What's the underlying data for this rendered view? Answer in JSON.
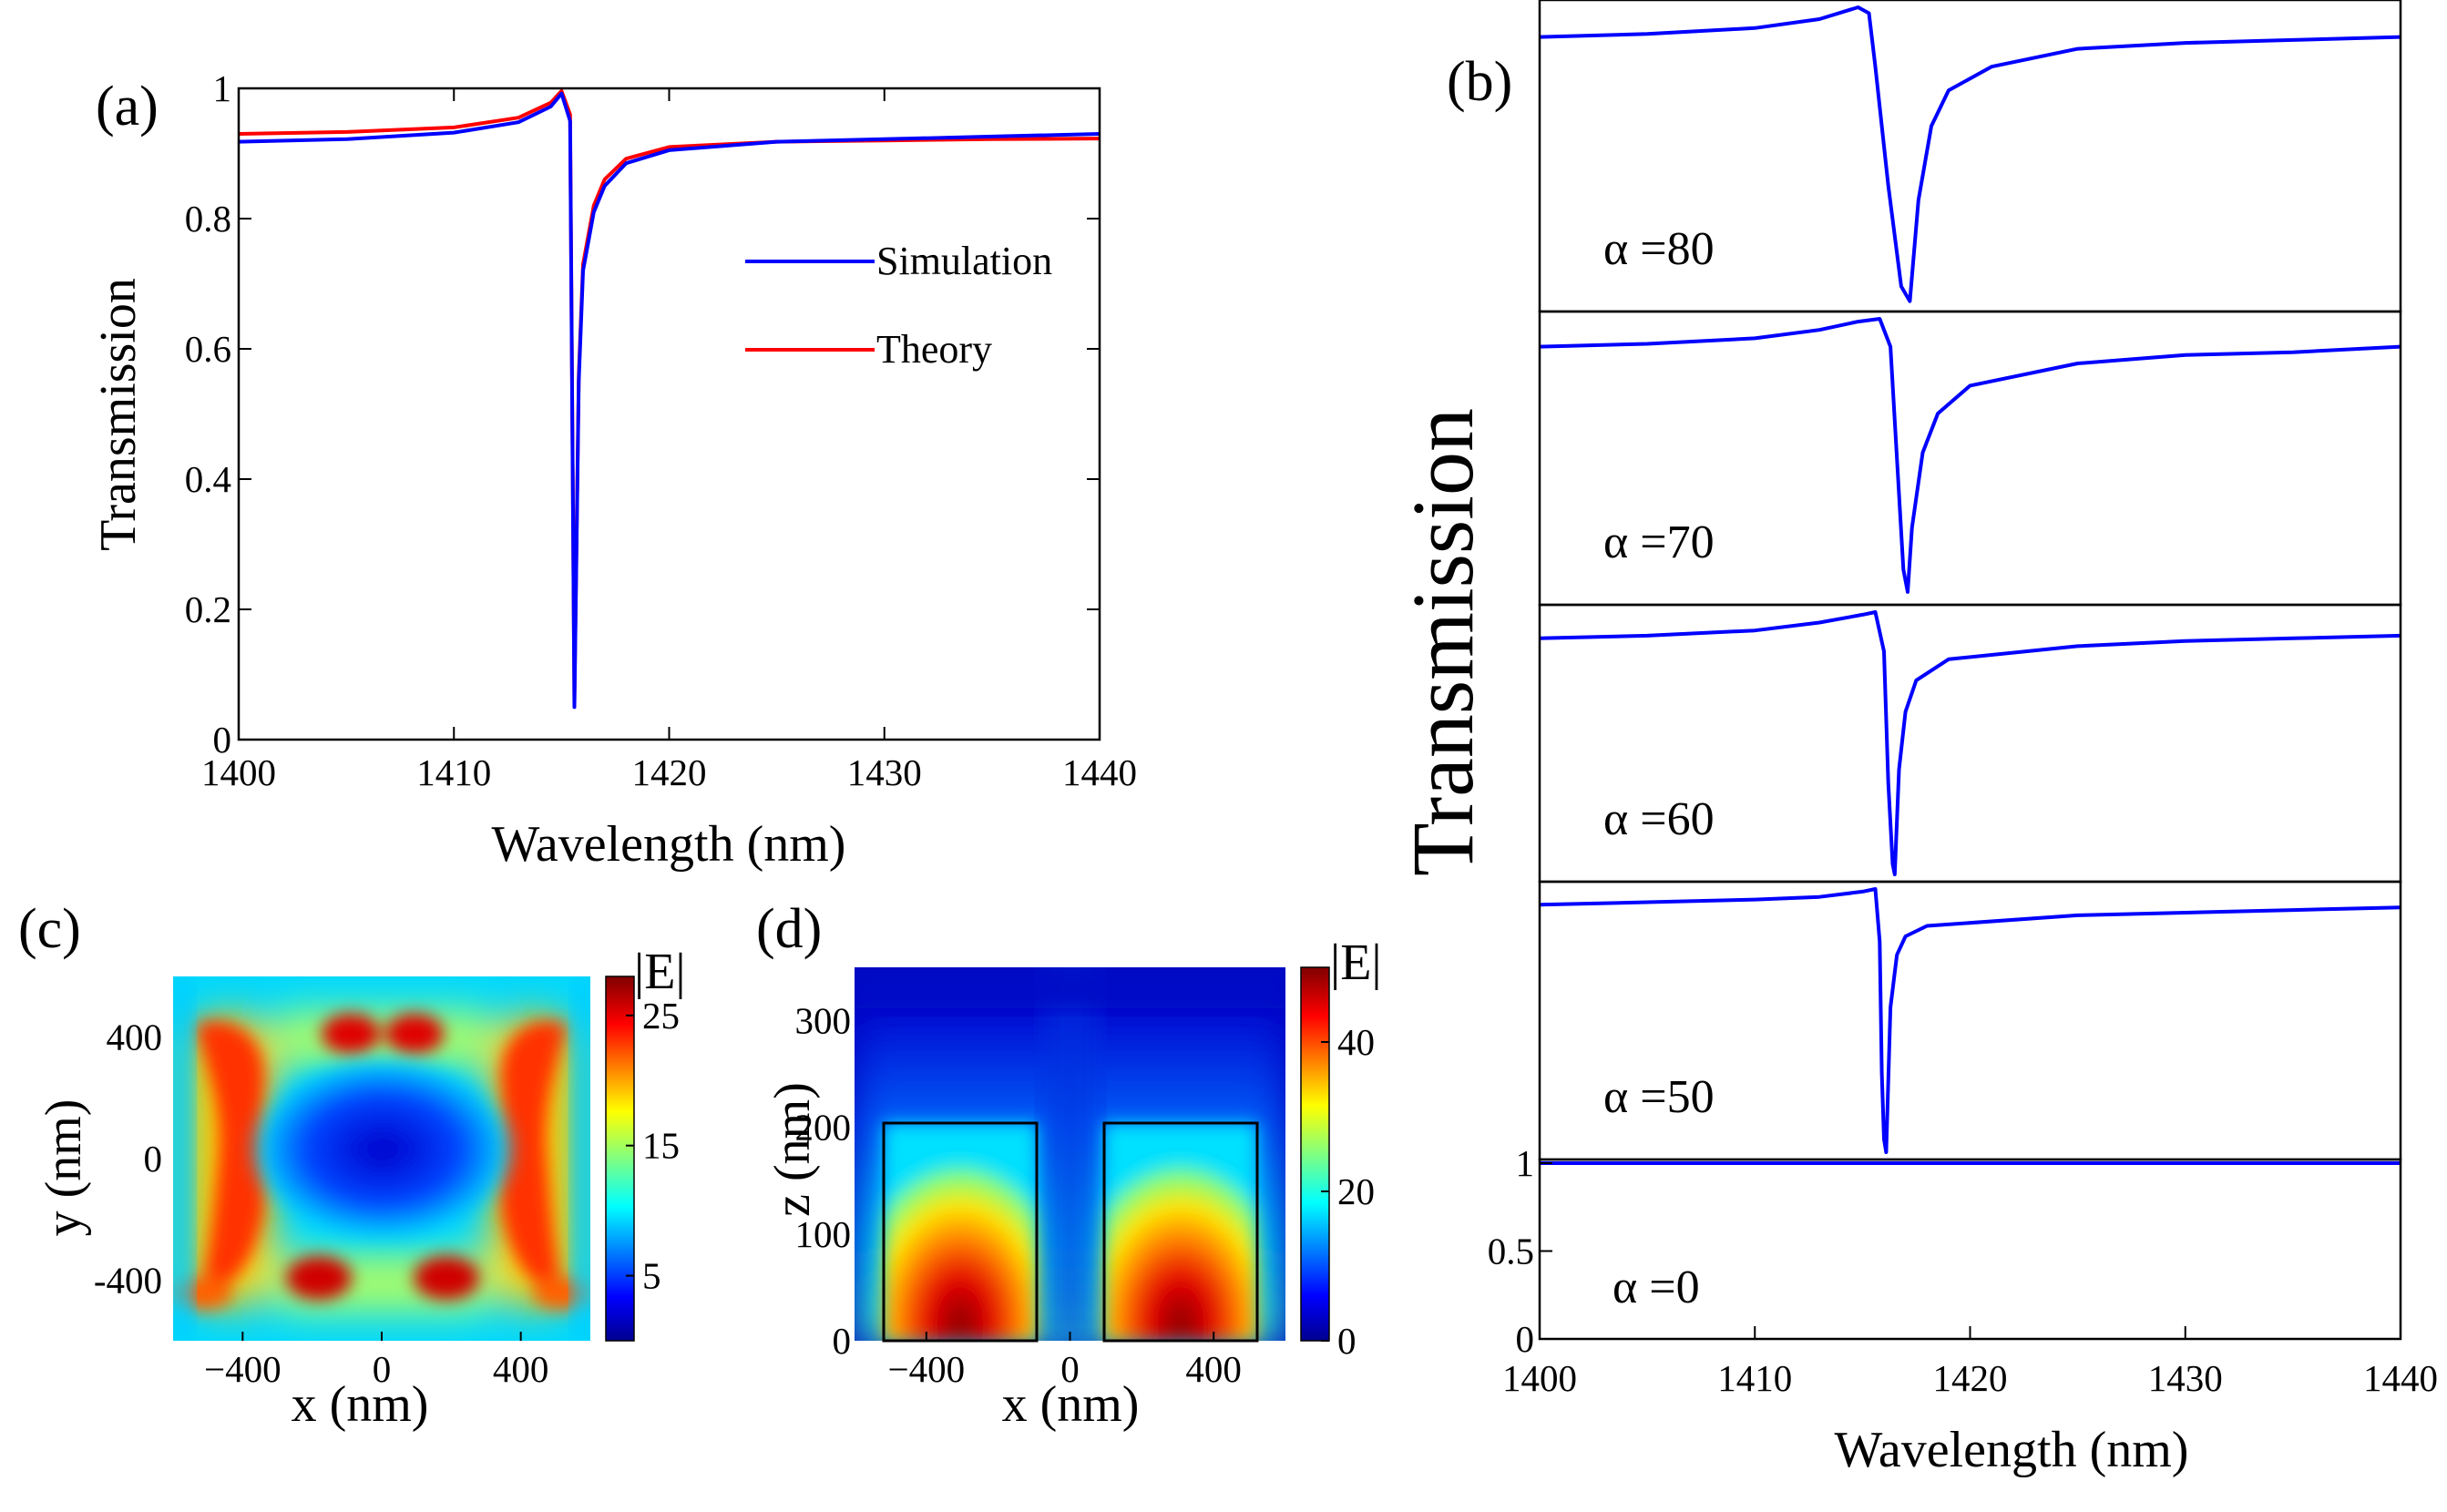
{
  "colors": {
    "simulation": "#0000ff",
    "theory": "#ff0000",
    "frame": "#000000"
  },
  "chart_data": [
    {
      "panel": "(a)",
      "type": "line",
      "xlabel": "Wavelength (nm)",
      "ylabel": "Transmission",
      "xlim": [
        1400,
        1440
      ],
      "ylim": [
        0,
        1
      ],
      "xticks": [
        "1400",
        "1410",
        "1420",
        "1430",
        "1440"
      ],
      "yticks": [
        "0",
        "0.2",
        "0.4",
        "0.6",
        "0.8",
        "1"
      ],
      "legend": {
        "position": "center-right",
        "entries": [
          "Simulation",
          "Theory"
        ]
      },
      "series": [
        {
          "name": "Simulation",
          "x": [
            1400,
            1405,
            1410,
            1413,
            1414.5,
            1415.0,
            1415.4,
            1415.6,
            1415.8,
            1416.0,
            1416.5,
            1417,
            1418,
            1420,
            1425,
            1430,
            1435,
            1440
          ],
          "y": [
            0.918,
            0.922,
            0.932,
            0.948,
            0.972,
            0.992,
            0.95,
            0.05,
            0.55,
            0.72,
            0.81,
            0.85,
            0.885,
            0.905,
            0.918,
            0.922,
            0.926,
            0.93
          ]
        },
        {
          "name": "Theory",
          "x": [
            1400,
            1405,
            1410,
            1413,
            1414.5,
            1415.0,
            1415.4,
            1415.6,
            1415.8,
            1416.0,
            1416.5,
            1417,
            1418,
            1420,
            1425,
            1430,
            1435,
            1440
          ],
          "y": [
            0.93,
            0.933,
            0.94,
            0.955,
            0.978,
            0.996,
            0.96,
            0.06,
            0.56,
            0.73,
            0.82,
            0.86,
            0.892,
            0.91,
            0.918,
            0.92,
            0.922,
            0.923
          ]
        }
      ]
    },
    {
      "panel": "(b)",
      "type": "line",
      "xlabel": "Wavelength (nm)",
      "ylabel": "Transmission",
      "xlim": [
        1400,
        1440
      ],
      "xticks": [
        "1400",
        "1410",
        "1420",
        "1430",
        "1440"
      ],
      "yticks_bottom": [
        "0",
        "0.5",
        "1"
      ],
      "series": [
        {
          "name": "α =80",
          "x": [
            1400,
            1405,
            1410,
            1413,
            1414.8,
            1415.3,
            1415.6,
            1416.2,
            1416.8,
            1417.2,
            1417.6,
            1418.2,
            1419,
            1421,
            1425,
            1430,
            1435,
            1440
          ],
          "y": [
            0.9,
            0.91,
            0.93,
            0.96,
            1.0,
            0.98,
            0.8,
            0.4,
            0.06,
            0.01,
            0.35,
            0.6,
            0.72,
            0.8,
            0.86,
            0.88,
            0.89,
            0.9
          ]
        },
        {
          "name": "α =70",
          "x": [
            1400,
            1405,
            1410,
            1413,
            1414.8,
            1415.8,
            1416.3,
            1416.6,
            1416.9,
            1417.1,
            1417.3,
            1417.8,
            1418.5,
            1420,
            1425,
            1430,
            1435,
            1440
          ],
          "y": [
            0.9,
            0.91,
            0.93,
            0.96,
            0.99,
            1.0,
            0.9,
            0.5,
            0.1,
            0.02,
            0.25,
            0.52,
            0.66,
            0.76,
            0.84,
            0.87,
            0.88,
            0.9
          ]
        },
        {
          "name": "α =60",
          "x": [
            1400,
            1405,
            1410,
            1413,
            1415,
            1415.6,
            1416.0,
            1416.2,
            1416.4,
            1416.5,
            1416.7,
            1417.0,
            1417.5,
            1419,
            1425,
            1430,
            1435,
            1440
          ],
          "y": [
            0.9,
            0.91,
            0.93,
            0.96,
            0.99,
            1.0,
            0.85,
            0.35,
            0.04,
            0.0,
            0.4,
            0.62,
            0.74,
            0.82,
            0.87,
            0.89,
            0.9,
            0.91
          ]
        },
        {
          "name": "α =50",
          "x": [
            1400,
            1405,
            1410,
            1413,
            1415,
            1415.6,
            1415.8,
            1415.9,
            1416.0,
            1416.1,
            1416.3,
            1416.6,
            1417.0,
            1418,
            1425,
            1430,
            1435,
            1440
          ],
          "y": [
            0.94,
            0.95,
            0.96,
            0.97,
            0.99,
            1.0,
            0.8,
            0.3,
            0.05,
            0.0,
            0.55,
            0.75,
            0.82,
            0.86,
            0.9,
            0.91,
            0.92,
            0.93
          ]
        },
        {
          "name": "α =0",
          "x": [
            1400,
            1440
          ],
          "y": [
            1.0,
            1.0
          ]
        }
      ]
    },
    {
      "panel": "(c)",
      "type": "heatmap",
      "xlabel": "x (nm)",
      "ylabel": "y (nm)",
      "xlim": [
        -600,
        600
      ],
      "ylim": [
        -600,
        600
      ],
      "xticks": [
        "−400",
        "0",
        "400"
      ],
      "yticks": [
        "400",
        "0",
        "-400"
      ],
      "colorbar": {
        "title": "|E|",
        "range": [
          0,
          28
        ],
        "ticks": [
          "25",
          "15",
          "5"
        ]
      }
    },
    {
      "panel": "(d)",
      "type": "heatmap",
      "xlabel": "x (nm)",
      "ylabel": "z (nm)",
      "xlim": [
        -600,
        600
      ],
      "ylim": [
        0,
        350
      ],
      "xticks": [
        "−400",
        "0",
        "400"
      ],
      "yticks": [
        "300",
        "200",
        "100",
        "0"
      ],
      "colorbar": {
        "title": "|E|",
        "range": [
          0,
          50
        ],
        "ticks": [
          "40",
          "20",
          "0"
        ]
      }
    }
  ]
}
